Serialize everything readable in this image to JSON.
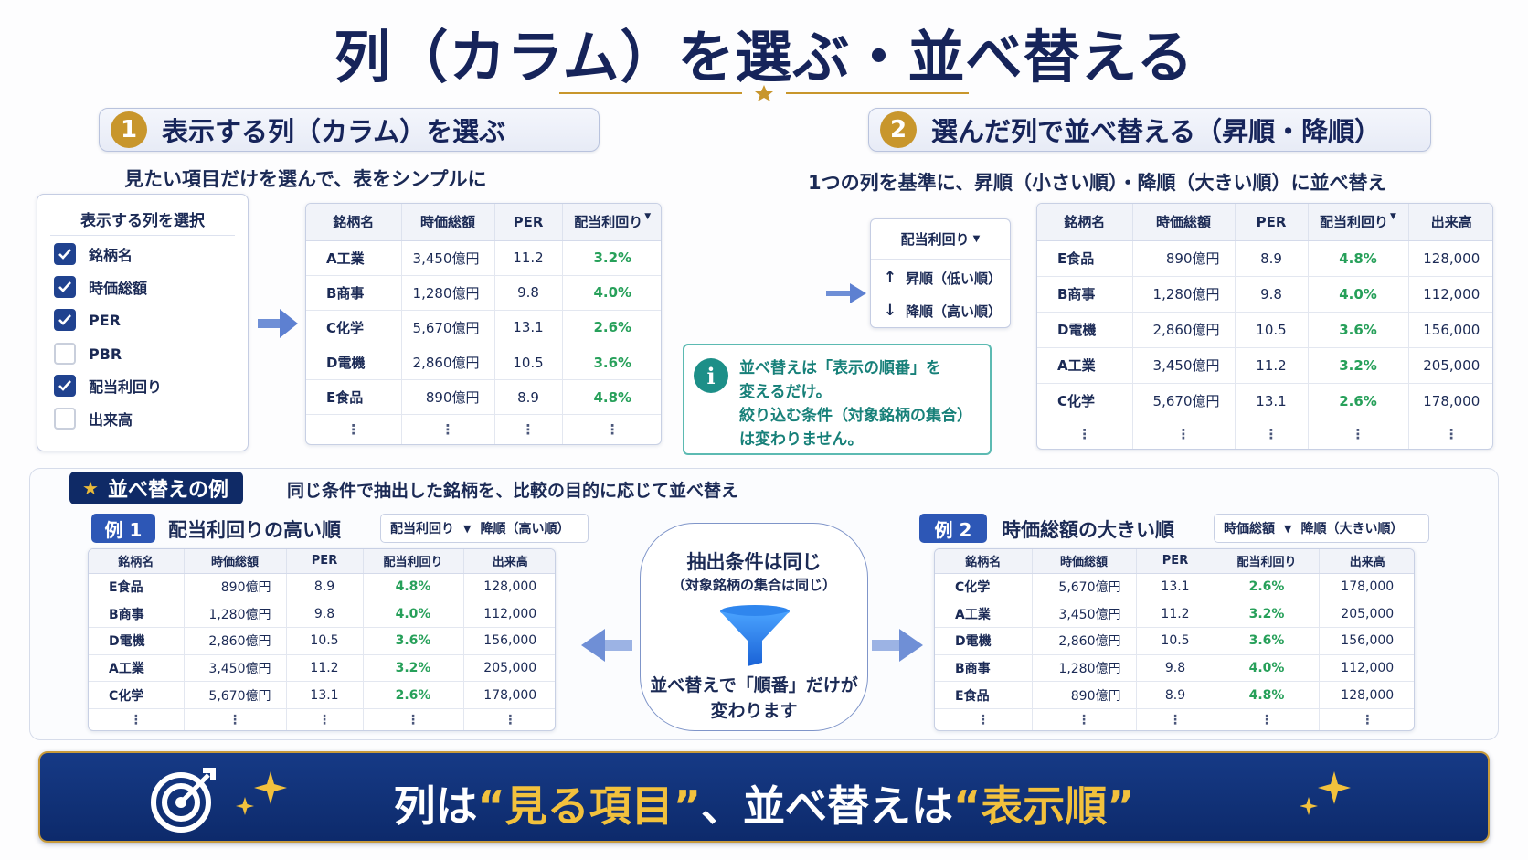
{
  "title": "列（カラム）を選ぶ・並べ替える",
  "section1": {
    "number": "1",
    "title": "表示する列（カラム）を選ぶ",
    "caption": "見たい項目だけを選んで、表をシンプルに",
    "selector_title": "表示する列を選択",
    "checkboxes": [
      {
        "label": "銘柄名",
        "checked": true
      },
      {
        "label": "時価総額",
        "checked": true
      },
      {
        "label": "PER",
        "checked": true
      },
      {
        "label": "PBR",
        "checked": false
      },
      {
        "label": "配当利回り",
        "checked": true
      },
      {
        "label": "出来高",
        "checked": false
      }
    ],
    "table": {
      "headers": [
        "銘柄名",
        "時価総額",
        "PER",
        "配当利回り"
      ],
      "rows": [
        [
          "A工業",
          "3,450億円",
          "11.2",
          "3.2%"
        ],
        [
          "B商事",
          "1,280億円",
          "9.8",
          "4.0%"
        ],
        [
          "C化学",
          "5,670億円",
          "13.1",
          "2.6%"
        ],
        [
          "D電機",
          "2,860億円",
          "10.5",
          "3.6%"
        ],
        [
          "E食品",
          "890億円",
          "8.9",
          "4.8%"
        ]
      ],
      "ellipsis": "⋮"
    }
  },
  "section2": {
    "number": "2",
    "title": "選んだ列で並べ替える（昇順・降順）",
    "caption": "1つの列を基準に、昇順（小さい順）・降順（大きい順）に並べ替え",
    "dropdown": {
      "label": "配当利回り",
      "options": [
        {
          "arrow": "↑",
          "label": "昇順（低い順）"
        },
        {
          "arrow": "↓",
          "label": "降順（高い順）"
        }
      ]
    },
    "info": {
      "icon": "i",
      "lines": [
        "並べ替えは「表示の順番」を",
        "変えるだけ。",
        "絞り込む条件（対象銘柄の集合）",
        "は変わりません。"
      ]
    },
    "table": {
      "headers": [
        "銘柄名",
        "時価総額",
        "PER",
        "配当利回り",
        "出来高"
      ],
      "rows": [
        [
          "E食品",
          "890億円",
          "8.9",
          "4.8%",
          "128,000"
        ],
        [
          "B商事",
          "1,280億円",
          "9.8",
          "4.0%",
          "112,000"
        ],
        [
          "D電機",
          "2,860億円",
          "10.5",
          "3.6%",
          "156,000"
        ],
        [
          "A工業",
          "3,450億円",
          "11.2",
          "3.2%",
          "205,000"
        ],
        [
          "C化学",
          "5,670億円",
          "13.1",
          "2.6%",
          "178,000"
        ]
      ],
      "ellipsis": "⋮"
    }
  },
  "examples": {
    "badge": "並べ替えの例",
    "caption": "同じ条件で抽出した銘柄を、比較の目的に応じて並べ替え",
    "ex1": {
      "badge": "例 1",
      "title": "配当利回りの高い順",
      "pill_col": "配当利回り",
      "pill_order": "降順（高い順）",
      "headers": [
        "銘柄名",
        "時価総額",
        "PER",
        "配当利回り",
        "出来高"
      ],
      "rows": [
        [
          "E食品",
          "890億円",
          "8.9",
          "4.8%",
          "128,000"
        ],
        [
          "B商事",
          "1,280億円",
          "9.8",
          "4.0%",
          "112,000"
        ],
        [
          "D電機",
          "2,860億円",
          "10.5",
          "3.6%",
          "156,000"
        ],
        [
          "A工業",
          "3,450億円",
          "11.2",
          "3.2%",
          "205,000"
        ],
        [
          "C化学",
          "5,670億円",
          "13.1",
          "2.6%",
          "178,000"
        ]
      ]
    },
    "ex2": {
      "badge": "例 2",
      "title": "時価総額の大きい順",
      "pill_col": "時価総額",
      "pill_order": "降順（大きい順）",
      "headers": [
        "銘柄名",
        "時価総額",
        "PER",
        "配当利回り",
        "出来高"
      ],
      "rows": [
        [
          "C化学",
          "5,670億円",
          "13.1",
          "2.6%",
          "178,000"
        ],
        [
          "A工業",
          "3,450億円",
          "11.2",
          "3.2%",
          "205,000"
        ],
        [
          "D電機",
          "2,860億円",
          "10.5",
          "3.6%",
          "156,000"
        ],
        [
          "B商事",
          "1,280億円",
          "9.8",
          "4.0%",
          "112,000"
        ],
        [
          "E食品",
          "890億円",
          "8.9",
          "4.8%",
          "128,000"
        ]
      ]
    },
    "funnel": {
      "line1": "抽出条件は同じ",
      "line2": "（対象銘柄の集合は同じ）",
      "line3": "並べ替えで「順番」だけが",
      "line4": "変わります"
    }
  },
  "footer": {
    "p1": "列は",
    "h1": "“見る項目”",
    "p2": "、並べ替えは",
    "h2": "“表示順”"
  },
  "colors": {
    "navy": "#16245a",
    "gold": "#c8962c",
    "green": "#27a05a",
    "teal": "#178079",
    "blue": "#2d57b6"
  }
}
